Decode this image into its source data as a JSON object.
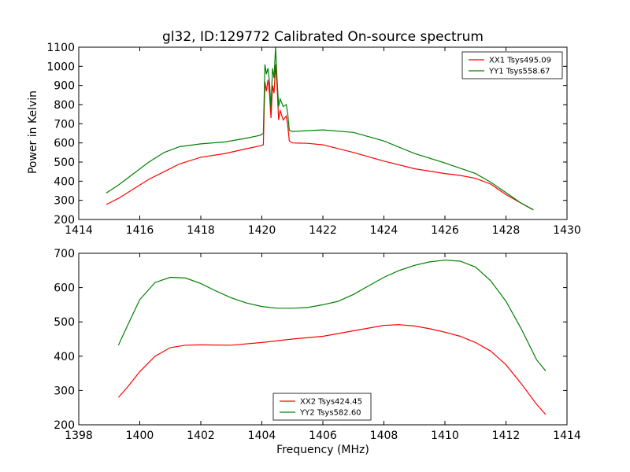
{
  "chart_data": [
    {
      "type": "line",
      "title": "gl32, ID:129772 Calibrated On-source spectrum",
      "xlabel": "",
      "ylabel": "Power in Kelvin",
      "xlim": [
        1414,
        1430
      ],
      "ylim": [
        200,
        1100
      ],
      "xticks": [
        1414,
        1416,
        1418,
        1420,
        1422,
        1424,
        1426,
        1428,
        1430
      ],
      "yticks": [
        200,
        300,
        400,
        500,
        600,
        700,
        800,
        900,
        1000,
        1100
      ],
      "legend_position": "top-right",
      "grid": false,
      "series": [
        {
          "name": "XX1 Tsys495.09",
          "color": "#ff0000",
          "points": [
            [
              1414.9,
              278
            ],
            [
              1415.3,
              310
            ],
            [
              1415.8,
              360
            ],
            [
              1416.3,
              410
            ],
            [
              1416.8,
              450
            ],
            [
              1417.3,
              490
            ],
            [
              1418.0,
              525
            ],
            [
              1418.8,
              545
            ],
            [
              1419.5,
              570
            ],
            [
              1419.95,
              585
            ],
            [
              1420.05,
              590
            ],
            [
              1420.1,
              920
            ],
            [
              1420.15,
              870
            ],
            [
              1420.2,
              930
            ],
            [
              1420.25,
              860
            ],
            [
              1420.3,
              730
            ],
            [
              1420.35,
              900
            ],
            [
              1420.4,
              860
            ],
            [
              1420.45,
              1010
            ],
            [
              1420.5,
              890
            ],
            [
              1420.55,
              720
            ],
            [
              1420.6,
              770
            ],
            [
              1420.7,
              720
            ],
            [
              1420.8,
              740
            ],
            [
              1420.85,
              690
            ],
            [
              1420.9,
              610
            ],
            [
              1421.0,
              600
            ],
            [
              1421.5,
              598
            ],
            [
              1422.0,
              590
            ],
            [
              1423.0,
              550
            ],
            [
              1424.0,
              505
            ],
            [
              1425.0,
              465
            ],
            [
              1426.0,
              440
            ],
            [
              1426.5,
              430
            ],
            [
              1427.0,
              415
            ],
            [
              1427.5,
              385
            ],
            [
              1428.0,
              330
            ],
            [
              1428.5,
              285
            ],
            [
              1428.9,
              250
            ]
          ]
        },
        {
          "name": "YY1 Tsys558.67",
          "color": "#008000",
          "points": [
            [
              1414.9,
              338
            ],
            [
              1415.3,
              380
            ],
            [
              1415.8,
              440
            ],
            [
              1416.3,
              500
            ],
            [
              1416.8,
              550
            ],
            [
              1417.3,
              580
            ],
            [
              1418.0,
              595
            ],
            [
              1418.8,
              605
            ],
            [
              1419.5,
              625
            ],
            [
              1419.95,
              640
            ],
            [
              1420.05,
              650
            ],
            [
              1420.1,
              1010
            ],
            [
              1420.15,
              960
            ],
            [
              1420.2,
              990
            ],
            [
              1420.25,
              920
            ],
            [
              1420.3,
              780
            ],
            [
              1420.35,
              990
            ],
            [
              1420.4,
              940
            ],
            [
              1420.45,
              1100
            ],
            [
              1420.5,
              930
            ],
            [
              1420.55,
              790
            ],
            [
              1420.6,
              830
            ],
            [
              1420.7,
              790
            ],
            [
              1420.8,
              800
            ],
            [
              1420.85,
              750
            ],
            [
              1420.9,
              665
            ],
            [
              1421.0,
              660
            ],
            [
              1422.0,
              668
            ],
            [
              1423.0,
              655
            ],
            [
              1424.0,
              610
            ],
            [
              1425.0,
              545
            ],
            [
              1426.0,
              495
            ],
            [
              1427.0,
              440
            ],
            [
              1427.5,
              395
            ],
            [
              1428.0,
              340
            ],
            [
              1428.5,
              285
            ],
            [
              1428.9,
              250
            ]
          ]
        }
      ]
    },
    {
      "type": "line",
      "title": "",
      "xlabel": "Frequency (MHz)",
      "ylabel": "",
      "xlim": [
        1398,
        1414
      ],
      "ylim": [
        200,
        700
      ],
      "xticks": [
        1398,
        1400,
        1402,
        1404,
        1406,
        1408,
        1410,
        1412,
        1414
      ],
      "yticks": [
        200,
        300,
        400,
        500,
        600,
        700
      ],
      "legend_position": "bottom-center",
      "grid": false,
      "series": [
        {
          "name": "XX2 Tsys424.45",
          "color": "#ff0000",
          "points": [
            [
              1399.3,
              280
            ],
            [
              1399.6,
              310
            ],
            [
              1400.0,
              355
            ],
            [
              1400.5,
              400
            ],
            [
              1401.0,
              425
            ],
            [
              1401.5,
              432
            ],
            [
              1402.0,
              433
            ],
            [
              1403.0,
              432
            ],
            [
              1404.0,
              440
            ],
            [
              1405.0,
              450
            ],
            [
              1406.0,
              458
            ],
            [
              1407.0,
              474
            ],
            [
              1408.0,
              490
            ],
            [
              1408.5,
              492
            ],
            [
              1409.0,
              488
            ],
            [
              1409.5,
              480
            ],
            [
              1410.0,
              470
            ],
            [
              1410.5,
              458
            ],
            [
              1411.0,
              440
            ],
            [
              1411.5,
              415
            ],
            [
              1412.0,
              375
            ],
            [
              1412.5,
              320
            ],
            [
              1413.0,
              260
            ],
            [
              1413.3,
              230
            ]
          ]
        },
        {
          "name": "YY2 Tsys582.60",
          "color": "#008000",
          "points": [
            [
              1399.3,
              432
            ],
            [
              1399.6,
              490
            ],
            [
              1400.0,
              565
            ],
            [
              1400.5,
              615
            ],
            [
              1401.0,
              630
            ],
            [
              1401.5,
              628
            ],
            [
              1402.0,
              612
            ],
            [
              1402.5,
              590
            ],
            [
              1403.0,
              570
            ],
            [
              1403.5,
              555
            ],
            [
              1404.0,
              545
            ],
            [
              1404.5,
              540
            ],
            [
              1405.0,
              540
            ],
            [
              1405.5,
              542
            ],
            [
              1406.0,
              550
            ],
            [
              1406.5,
              560
            ],
            [
              1407.0,
              580
            ],
            [
              1407.5,
              605
            ],
            [
              1408.0,
              630
            ],
            [
              1408.5,
              650
            ],
            [
              1409.0,
              665
            ],
            [
              1409.5,
              675
            ],
            [
              1410.0,
              680
            ],
            [
              1410.5,
              677
            ],
            [
              1411.0,
              660
            ],
            [
              1411.5,
              620
            ],
            [
              1412.0,
              560
            ],
            [
              1412.5,
              480
            ],
            [
              1413.0,
              390
            ],
            [
              1413.3,
              357
            ]
          ]
        }
      ]
    }
  ]
}
